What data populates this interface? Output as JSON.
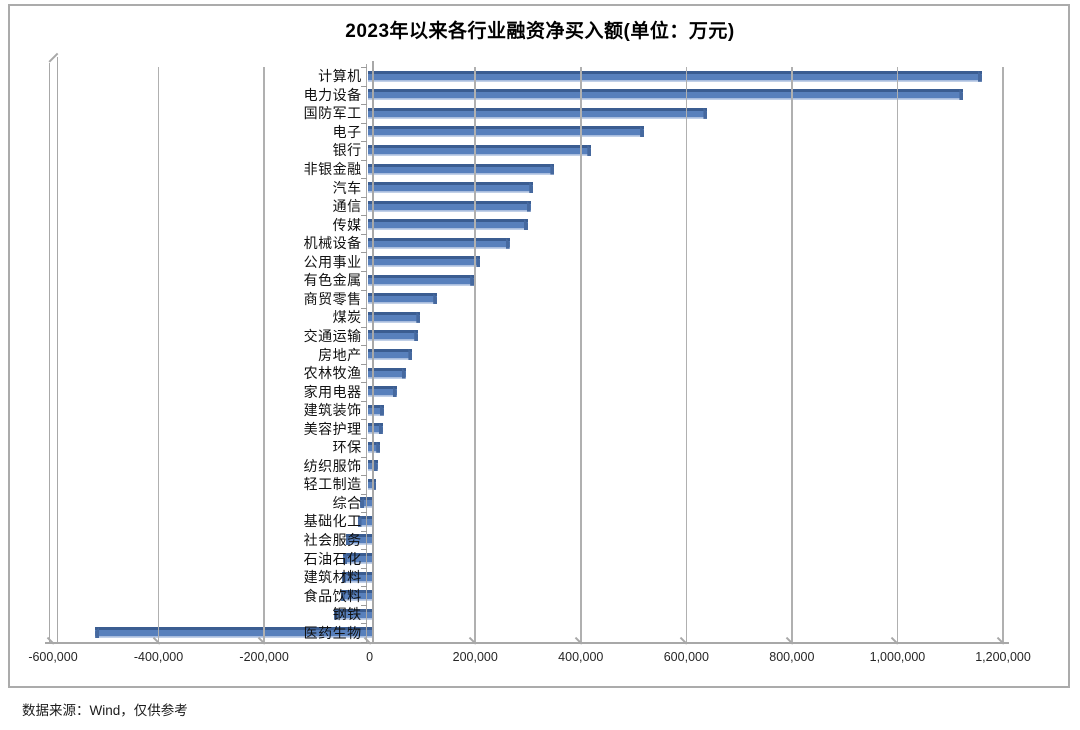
{
  "title": "2023年以来各行业融资净买入额(单位：万元)",
  "footer": "数据来源：Wind，仅供参考",
  "chart_data": {
    "type": "bar",
    "orientation": "horizontal",
    "title": "2023年以来各行业融资净买入额(单位：万元)",
    "unit": "万元",
    "source_note": "数据来源：Wind，仅供参考",
    "legend": "none",
    "grid": "vertical",
    "xlim": [
      -600000,
      1200000
    ],
    "x_ticks": [
      -600000,
      -400000,
      -200000,
      0,
      200000,
      400000,
      600000,
      800000,
      1000000,
      1200000
    ],
    "x_tick_labels": [
      "-600,000",
      "-400,000",
      "-200,000",
      "0",
      "200,000",
      "400,000",
      "600,000",
      "800,000",
      "1,000,000",
      "1,200,000"
    ],
    "categories": [
      "计算机",
      "电力设备",
      "国防军工",
      "电子",
      "银行",
      "非银金融",
      "汽车",
      "通信",
      "传媒",
      "机械设备",
      "公用事业",
      "有色金属",
      "商贸零售",
      "煤炭",
      "交通运输",
      "房地产",
      "农林牧渔",
      "家用电器",
      "建筑装饰",
      "美容护理",
      "环保",
      "纺织服饰",
      "轻工制造",
      "综合",
      "基础化工",
      "社会服务",
      "石油石化",
      "建筑材料",
      "食品饮料",
      "钢铁",
      "医药生物"
    ],
    "values": [
      1160000,
      1125000,
      640000,
      520000,
      420000,
      350000,
      310000,
      305000,
      300000,
      265000,
      210000,
      198000,
      128000,
      96000,
      92000,
      81000,
      68000,
      51000,
      27000,
      25000,
      20000,
      15000,
      12000,
      -18000,
      -23000,
      -45000,
      -50000,
      -52000,
      -54000,
      -68000,
      -520000
    ],
    "colors": {
      "bar_fill": "#5880bc",
      "bar_top_edge": "#3b5d91",
      "bar_bottom_edge": "#cdd9ec",
      "bar_end_cap": "#46699f",
      "gridline": "#b0b0b0",
      "frame_border": "#ababab",
      "text": "#1a1a1a"
    }
  }
}
